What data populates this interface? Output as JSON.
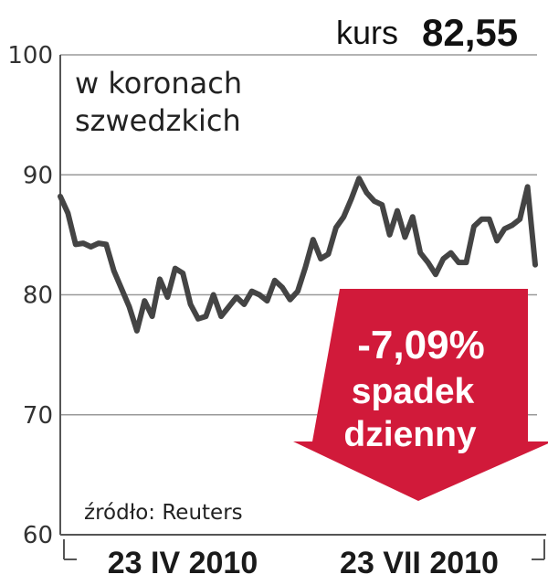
{
  "header": {
    "kurs_label": "kurs",
    "kurs_value": "82,55"
  },
  "unit_note": [
    "w koronach",
    "szwedzkich"
  ],
  "source": "źródło: Reuters",
  "callout": {
    "change": "-7,09%",
    "line1": "spadek",
    "line2": "dzienny",
    "color": "#d11a3a"
  },
  "chart_data": {
    "type": "line",
    "title": "",
    "xlabel": "",
    "ylabel": "",
    "ylim": [
      60,
      100
    ],
    "yticks": [
      100,
      90,
      80,
      70,
      60
    ],
    "ytick_labels": [
      "100",
      "90",
      "80",
      "70",
      "60"
    ],
    "grid": true,
    "xtick_labels": [
      "23 IV 2010",
      "23 VII 2010"
    ],
    "line_color": "#444444",
    "series": [
      {
        "name": "",
        "values": [
          88.2,
          86.8,
          84.2,
          84.3,
          84.0,
          84.3,
          84.2,
          82.0,
          80.5,
          79.0,
          77.0,
          79.5,
          78.2,
          81.3,
          79.8,
          82.2,
          81.8,
          79.2,
          78.0,
          78.2,
          80.0,
          78.2,
          79.0,
          79.8,
          79.2,
          80.3,
          80.0,
          79.5,
          81.2,
          80.6,
          79.6,
          80.3,
          82.3,
          84.6,
          83.0,
          83.4,
          85.6,
          86.5,
          88.0,
          89.7,
          88.5,
          87.8,
          87.5,
          85.0,
          87.0,
          84.8,
          86.5,
          83.5,
          82.7,
          81.7,
          83.0,
          83.5,
          82.7,
          82.7,
          85.7,
          86.3,
          86.3,
          84.5,
          85.5,
          85.8,
          86.3,
          89.0,
          82.5
        ]
      }
    ]
  }
}
